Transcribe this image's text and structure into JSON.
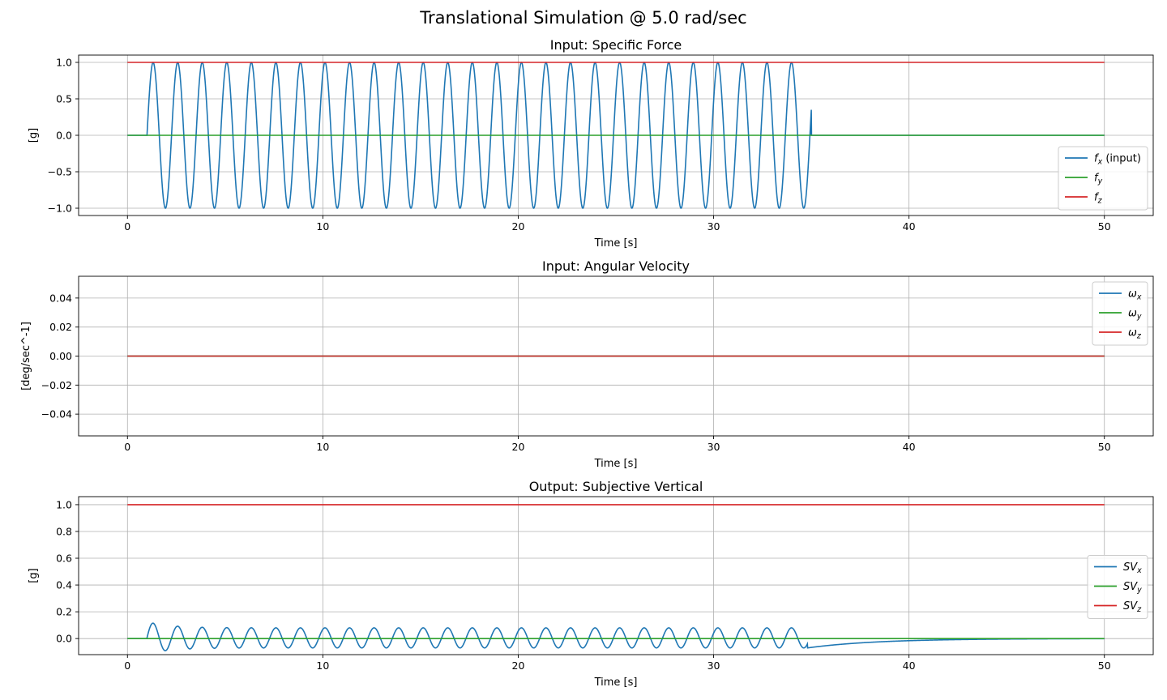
{
  "figure": {
    "title": "Translational Simulation @ 5.0 rad/sec"
  },
  "colors": {
    "blue": "#1f77b4",
    "green": "#2ca02c",
    "red": "#d62728",
    "grid": "#b0b0b0"
  },
  "chart_data": [
    {
      "type": "line",
      "title": "Input: Specific Force",
      "xlabel": "Time [s]",
      "ylabel": "[g]",
      "xlim": [
        -2.5,
        52.5
      ],
      "ylim": [
        -1.1,
        1.1
      ],
      "xticks": [
        "0",
        "10",
        "20",
        "30",
        "40",
        "50"
      ],
      "yticks": [
        "1.0",
        "0.5",
        "0.0",
        "−0.5",
        "−1.0"
      ],
      "grid": true,
      "legend_position": "lower-right",
      "series": [
        {
          "name": "fx (input)",
          "label_base": "f",
          "label_sub": "x",
          "label_suffix": " (input)",
          "color": "#1f77b4",
          "signal": {
            "kind": "sine",
            "t_start": 1.0,
            "t_end": 35.0,
            "amplitude": 1.0,
            "omega": 5.0,
            "before": 0.0,
            "after": 0.0,
            "end_jump": 0.35
          }
        },
        {
          "name": "fy",
          "label_base": "f",
          "label_sub": "y",
          "label_suffix": "",
          "color": "#2ca02c",
          "signal": {
            "kind": "constant",
            "value": 0.0
          }
        },
        {
          "name": "fz",
          "label_base": "f",
          "label_sub": "z",
          "label_suffix": "",
          "color": "#d62728",
          "signal": {
            "kind": "constant",
            "value": 1.0
          }
        }
      ]
    },
    {
      "type": "line",
      "title": "Input: Angular Velocity",
      "xlabel": "Time [s]",
      "ylabel": "[deg/sec^-1]",
      "xlim": [
        -2.5,
        52.5
      ],
      "ylim": [
        -0.055,
        0.055
      ],
      "xticks": [
        "0",
        "10",
        "20",
        "30",
        "40",
        "50"
      ],
      "yticks": [
        "0.04",
        "0.02",
        "0.00",
        "−0.02",
        "−0.04"
      ],
      "grid": true,
      "legend_position": "upper-right",
      "series": [
        {
          "name": "ωx",
          "label_base": "ω",
          "label_sub": "x",
          "label_suffix": "",
          "color": "#1f77b4",
          "signal": {
            "kind": "constant",
            "value": 0.0
          }
        },
        {
          "name": "ωy",
          "label_base": "ω",
          "label_sub": "y",
          "label_suffix": "",
          "color": "#2ca02c",
          "signal": {
            "kind": "constant",
            "value": 0.0
          }
        },
        {
          "name": "ωz",
          "label_base": "ω",
          "label_sub": "z",
          "label_suffix": "",
          "color": "#d62728",
          "signal": {
            "kind": "constant",
            "value": 0.0
          }
        }
      ]
    },
    {
      "type": "line",
      "title": "Output: Subjective Vertical",
      "xlabel": "Time [s]",
      "ylabel": "[g]",
      "xlim": [
        -2.5,
        52.5
      ],
      "ylim": [
        -0.12,
        1.06
      ],
      "xticks": [
        "0",
        "10",
        "20",
        "30",
        "40",
        "50"
      ],
      "yticks": [
        "1.0",
        "0.8",
        "0.6",
        "0.4",
        "0.2",
        "0.0"
      ],
      "grid": true,
      "legend_position": "center-right",
      "series": [
        {
          "name": "SVx",
          "label_base": "SV",
          "label_sub": "x",
          "label_suffix": "",
          "color": "#1f77b4",
          "signal": {
            "kind": "sine_offset",
            "t_start": 1.0,
            "t_end": 34.8,
            "amplitude": 0.075,
            "offset": 0.005,
            "peak_first": 0.12,
            "omega": 5.0,
            "tail_value": -0.07,
            "tail_tau": 3.5
          }
        },
        {
          "name": "SVy",
          "label_base": "SV",
          "label_sub": "y",
          "label_suffix": "",
          "color": "#2ca02c",
          "signal": {
            "kind": "constant",
            "value": 0.0
          }
        },
        {
          "name": "SVz",
          "label_base": "SV",
          "label_sub": "z",
          "label_suffix": "",
          "color": "#d62728",
          "signal": {
            "kind": "constant",
            "value": 1.0
          }
        }
      ]
    }
  ]
}
